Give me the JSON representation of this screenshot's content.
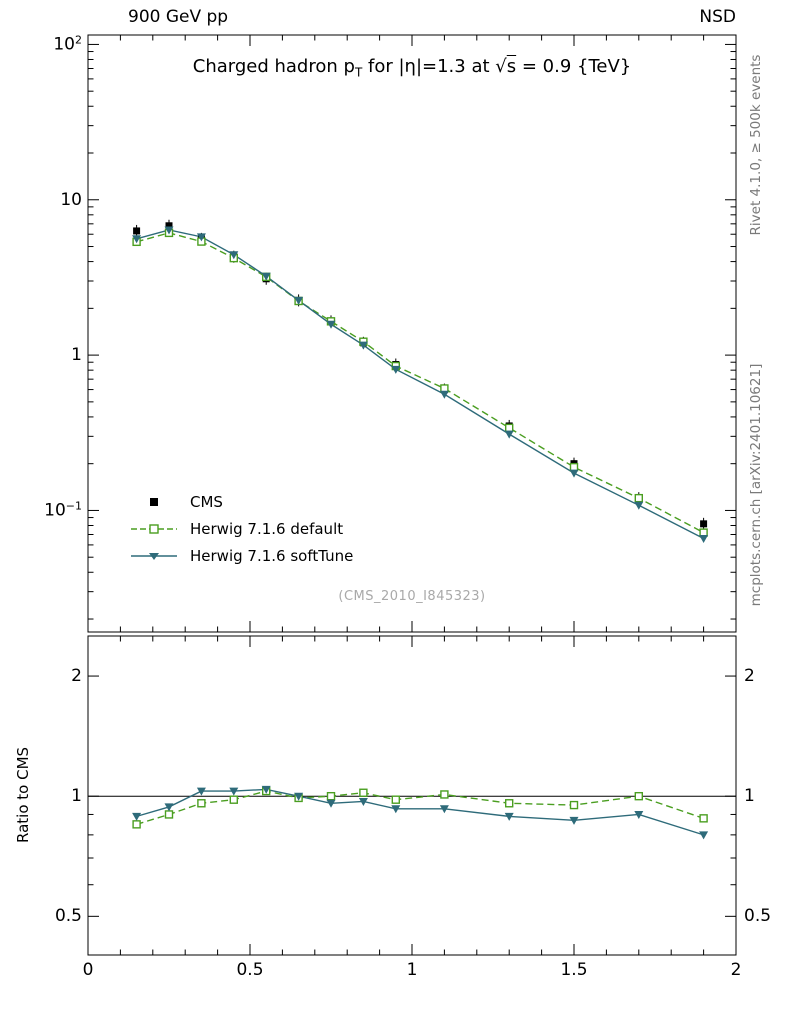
{
  "header": {
    "left": "900 GeV pp",
    "right": "NSD"
  },
  "sidebar_right": {
    "top": "Rivet 4.1.0, ≥ 500k events",
    "bottom": "mcplots.cern.ch [arXiv:2401.10621]"
  },
  "main_title": {
    "pre": "Charged hadron p",
    "sub": "T",
    "mid": " for |η|=1.3 at ",
    "sqrt": "√",
    "sqrtArg": "s",
    "post": " = 0.9 {TeV}"
  },
  "watermark": "(CMS_2010_I845323)",
  "ratio_label": "Ratio to CMS",
  "legend": [
    {
      "label": "CMS",
      "color": "#000000",
      "marker": "square-filled",
      "line": "none"
    },
    {
      "label": "Herwig 7.1.6 default",
      "color": "#4a9e20",
      "marker": "square-open",
      "line": "dashed"
    },
    {
      "label": "Herwig 7.1.6 softTune",
      "color": "#2e6b7a",
      "marker": "triangle-down",
      "line": "solid"
    }
  ],
  "chart_data": [
    {
      "type": "line",
      "title": "Charged hadron pT for |η|=1.3 at √s = 0.9 {TeV}",
      "xlabel": "",
      "ylabel": "",
      "yscale": "log",
      "xlim": [
        0,
        2
      ],
      "ylim": [
        0.0165,
        115
      ],
      "xticks": [
        0,
        0.5,
        1,
        1.5,
        2
      ],
      "yticks": [
        100,
        10,
        1,
        0.1
      ],
      "ytick_labels": [
        {
          "base": "10",
          "sup": "2"
        },
        {
          "base": "10"
        },
        {
          "base": "1"
        },
        {
          "base": "10",
          "sup": "−1"
        }
      ],
      "labels_both_sides": false,
      "show_x_labels": false,
      "x": [
        0.15,
        0.25,
        0.35,
        0.45,
        0.55,
        0.65,
        0.75,
        0.85,
        0.95,
        1.1,
        1.3,
        1.5,
        1.7,
        1.9
      ],
      "series": [
        {
          "name": "CMS",
          "color": "#000000",
          "marker": "square-filled",
          "line": "none",
          "values": [
            6.3,
            6.8,
            5.6,
            4.3,
            3.1,
            2.25,
            1.65,
            1.2,
            0.87,
            0.6,
            0.35,
            0.2,
            0.12,
            0.082
          ]
        },
        {
          "name": "Herwig 7.1.6 default",
          "color": "#4a9e20",
          "marker": "square-open",
          "line": "dashed",
          "values": [
            5.36,
            6.12,
            5.38,
            4.21,
            3.19,
            2.23,
            1.65,
            1.22,
            0.85,
            0.61,
            0.34,
            0.19,
            0.12,
            0.072
          ]
        },
        {
          "name": "Herwig 7.1.6 softTune",
          "color": "#2e6b7a",
          "marker": "triangle-down",
          "line": "solid",
          "values": [
            5.61,
            6.39,
            5.77,
            4.43,
            3.22,
            2.25,
            1.58,
            1.16,
            0.81,
            0.56,
            0.31,
            0.174,
            0.108,
            0.066
          ]
        }
      ]
    },
    {
      "type": "line",
      "title": "Ratio to CMS",
      "xlabel": "",
      "ylabel": "Ratio to CMS",
      "yscale": "log",
      "refline": 1,
      "xlim": [
        0,
        2
      ],
      "ylim": [
        0.4,
        2.52
      ],
      "xticks": [
        0,
        0.5,
        1,
        1.5,
        2
      ],
      "xtick_labels": [
        "0",
        "0.5",
        "1",
        "1.5",
        "2"
      ],
      "yticks": [
        2,
        1,
        0.5
      ],
      "ytick_labels": [
        {
          "base": "2"
        },
        {
          "base": "1"
        },
        {
          "base": "0.5"
        }
      ],
      "labels_both_sides": true,
      "show_x_labels": true,
      "x": [
        0.15,
        0.25,
        0.35,
        0.45,
        0.55,
        0.65,
        0.75,
        0.85,
        0.95,
        1.1,
        1.3,
        1.5,
        1.7,
        1.9
      ],
      "series": [
        {
          "name": "Herwig 7.1.6 default",
          "color": "#4a9e20",
          "marker": "square-open",
          "line": "dashed",
          "values": [
            0.85,
            0.9,
            0.96,
            0.98,
            1.03,
            0.99,
            1.0,
            1.02,
            0.98,
            1.01,
            0.96,
            0.95,
            1.0,
            0.88
          ]
        },
        {
          "name": "Herwig 7.1.6 softTune",
          "color": "#2e6b7a",
          "marker": "triangle-down",
          "line": "solid",
          "values": [
            0.89,
            0.94,
            1.03,
            1.03,
            1.04,
            1.0,
            0.96,
            0.97,
            0.93,
            0.93,
            0.89,
            0.87,
            0.9,
            0.8
          ]
        }
      ]
    }
  ]
}
